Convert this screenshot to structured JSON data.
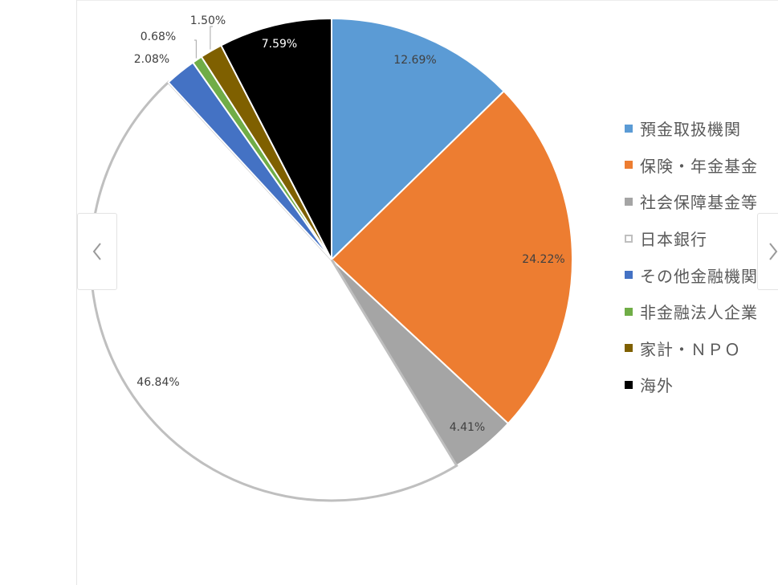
{
  "chart_data": {
    "type": "pie",
    "title": "",
    "categories": [
      "預金取扱機関",
      "保険・年金基金",
      "社会保障基金等",
      "日本銀行",
      "その他金融機関",
      "非金融法人企業",
      "家計・ＮＰＯ",
      "海外"
    ],
    "values": [
      12.69,
      24.22,
      4.41,
      46.84,
      2.08,
      0.68,
      1.5,
      7.59
    ],
    "data_labels": [
      "12.69%",
      "24.22%",
      "4.41%",
      "46.84%",
      "2.08%",
      "0.68%",
      "1.50%",
      "7.59%"
    ],
    "colors": [
      "#5b9bd5",
      "#ed7d31",
      "#a5a5a5",
      "#ffffff",
      "#4472c4",
      "#70ad47",
      "#7f6000",
      "#000000"
    ],
    "slice_outline": "#bfbfbf",
    "label_colors": [
      "#404040",
      "#404040",
      "#404040",
      "#404040",
      "#404040",
      "#404040",
      "#404040",
      "#ffffff"
    ],
    "start_angle_deg": 0,
    "direction": "clockwise",
    "legend_position": "right"
  },
  "legend": {
    "items": [
      {
        "label": "預金取扱機関",
        "color": "#5b9bd5"
      },
      {
        "label": "保険・年金基金",
        "color": "#ed7d31"
      },
      {
        "label": "社会保障基金等",
        "color": "#a5a5a5"
      },
      {
        "label": "日本銀行",
        "color": "#ffffff"
      },
      {
        "label": "その他金融機関",
        "color": "#4472c4"
      },
      {
        "label": "非金融法人企業",
        "color": "#70ad47"
      },
      {
        "label": "家計・ＮＰＯ",
        "color": "#7f6000"
      },
      {
        "label": "海外",
        "color": "#000000"
      }
    ]
  },
  "navigation": {
    "prev_icon": "chevron-left-icon",
    "next_icon": "chevron-right-icon"
  }
}
